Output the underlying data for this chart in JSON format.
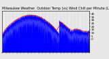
{
  "title": "Milwaukee Weather  Outdoor Temp (vs) Wind Chill per Minute (Last 24 Hours)",
  "title_fontsize": 3.5,
  "bg_color": "#e8e8e8",
  "plot_bg_color": "#e8e8e8",
  "n_points": 1440,
  "ylim": [
    -20,
    45
  ],
  "yticks": [
    0,
    5,
    10,
    15,
    20,
    25,
    30,
    35,
    40
  ],
  "ylabel_fontsize": 3.0,
  "n_xticks": 24,
  "grid_color": "#999999",
  "bar_color": "#0000ff",
  "line_color": "#ff0000",
  "line_width": 0.55,
  "seed": 17
}
